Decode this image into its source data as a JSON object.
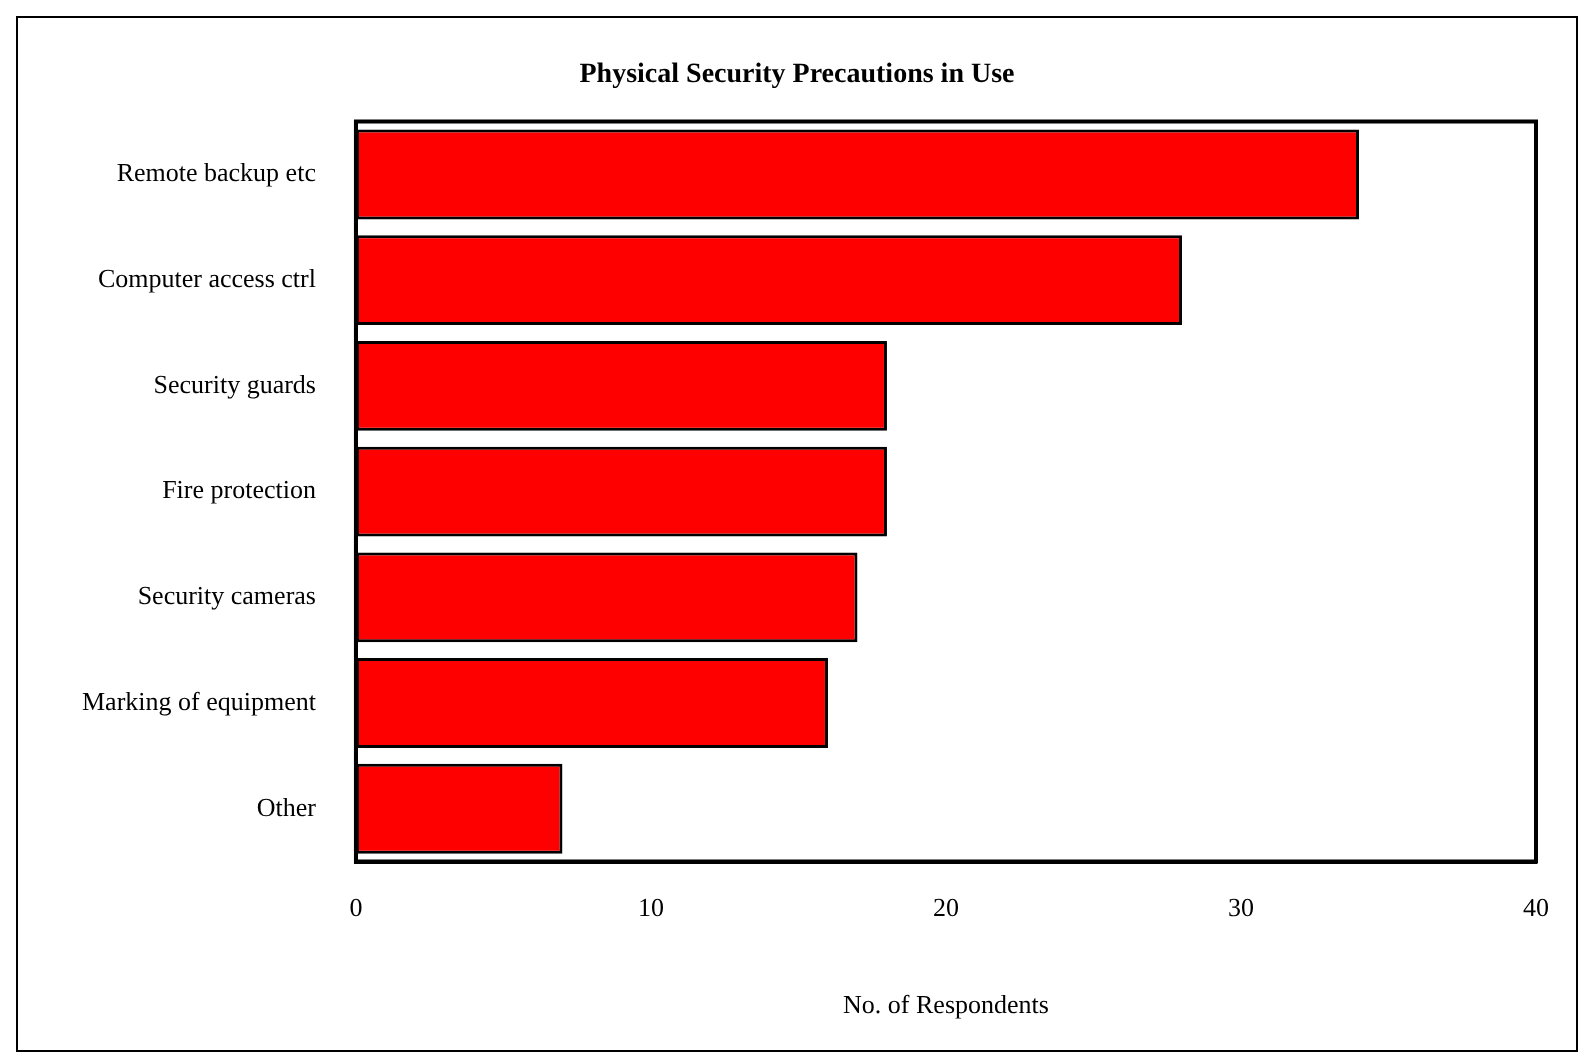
{
  "chart_data": {
    "type": "bar",
    "orientation": "horizontal",
    "title": "Physical Security Precautions in Use",
    "xlabel": "No. of Respondents",
    "categories": [
      "Remote backup etc",
      "Computer access ctrl",
      "Security guards",
      "Fire protection",
      "Security cameras",
      "Marking of equipment",
      "Other"
    ],
    "values": [
      34,
      28,
      18,
      18,
      17,
      16,
      7
    ],
    "color": "#ff0000",
    "xlim": [
      0,
      40
    ],
    "xticks": [
      0,
      10,
      20,
      30,
      40
    ],
    "grid": false,
    "legend": false
  }
}
